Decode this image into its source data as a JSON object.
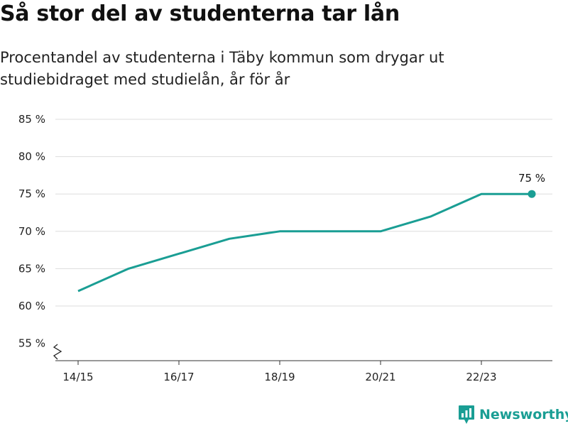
{
  "title": "Så stor del av studenterna tar lån",
  "subtitle": "Procentandel av studenterna i Täby kommun som drygar ut studiebidraget med studielån, år för år",
  "brand": {
    "name": "Newsworthy",
    "color": "#1a9e94"
  },
  "chart_data": {
    "type": "line",
    "x": [
      "14/15",
      "15/16",
      "16/17",
      "17/18",
      "18/19",
      "19/20",
      "20/21",
      "21/22",
      "22/23",
      "23/24"
    ],
    "values": [
      62,
      65,
      67,
      69,
      70,
      70,
      70,
      72,
      75,
      75
    ],
    "x_tick_labels": [
      "14/15",
      "16/17",
      "18/19",
      "20/21",
      "22/23"
    ],
    "y_ticks": [
      55,
      60,
      65,
      70,
      75,
      80,
      85
    ],
    "y_tick_labels": [
      "55 %",
      "60 %",
      "65 %",
      "70 %",
      "75 %",
      "80 %",
      "85 %"
    ],
    "ylim": [
      53,
      85
    ],
    "y_axis_break": true,
    "grid": true,
    "line_color": "#1a9e94",
    "last_point_label": "75 %"
  }
}
